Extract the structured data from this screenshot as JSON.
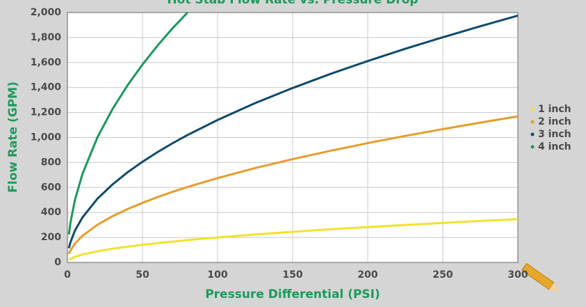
{
  "chart_data": {
    "type": "line",
    "title": "Hot Stab Flow Rate vs. Pressure Drop",
    "x_label": "Pressure Differential (PSI)",
    "y_label": "Flow Rate (GPM)",
    "x": [
      1,
      2,
      5,
      10,
      20,
      30,
      40,
      50,
      60,
      70,
      80,
      100,
      125,
      150,
      175,
      200,
      225,
      250,
      275,
      300
    ],
    "series": [
      {
        "name": "1 inch",
        "color": "#f2e22c",
        "values": [
          20,
          28,
          45,
          63,
          89,
          110,
          126,
          141,
          155,
          167,
          179,
          200,
          224,
          245,
          265,
          283,
          300,
          316,
          332,
          346
        ]
      },
      {
        "name": "2 inch",
        "color": "#e89b2a",
        "values": [
          68,
          95,
          151,
          213,
          302,
          370,
          427,
          477,
          523,
          565,
          604,
          675,
          755,
          827,
          893,
          955,
          1013,
          1067,
          1119,
          1169
        ]
      },
      {
        "name": "3 inch",
        "color": "#0d4a6b",
        "values": [
          114,
          161,
          255,
          360,
          510,
          624,
          721,
          806,
          883,
          954,
          1020,
          1140,
          1275,
          1396,
          1508,
          1612,
          1710,
          1802,
          1890,
          1975
        ]
      },
      {
        "name": "4 inch",
        "color": "#17995a",
        "values": [
          224,
          317,
          501,
          708,
          1002,
          1227,
          1417,
          1584,
          1735,
          1874,
          2000,
          null,
          null,
          null,
          null,
          null,
          null,
          null,
          null,
          null
        ]
      }
    ],
    "xlim": [
      0,
      300
    ],
    "xticks": [
      0,
      50,
      100,
      150,
      200,
      250,
      300
    ],
    "ylim": [
      0,
      2000
    ],
    "yticks": [
      0,
      200,
      400,
      600,
      800,
      {
        "value": 1000,
        "label": "1,000"
      },
      {
        "value": 1200,
        "label": "1,200"
      },
      {
        "value": 1400,
        "label": "1,400"
      },
      {
        "value": 1600,
        "label": "1,600"
      },
      {
        "value": 1800,
        "label": "1,800"
      },
      {
        "value": 2000,
        "label": "2,000"
      }
    ],
    "grid": true,
    "legend": "right"
  }
}
